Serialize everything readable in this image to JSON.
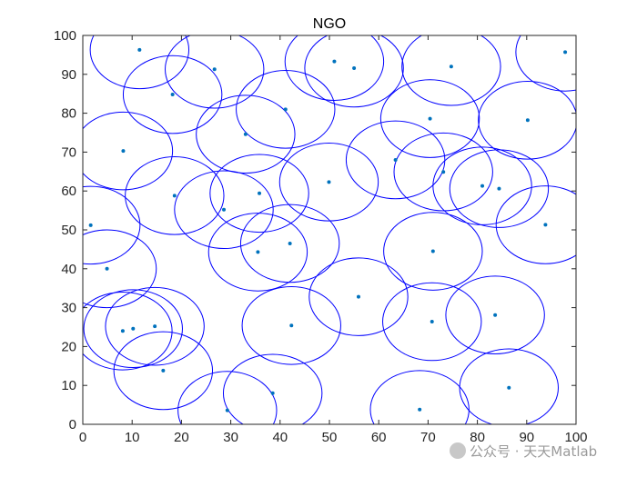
{
  "chart_data": {
    "type": "scatter",
    "title": "NGO",
    "xlim": [
      0,
      100
    ],
    "ylim": [
      0,
      100
    ],
    "xticks": [
      0,
      10,
      20,
      30,
      40,
      50,
      60,
      70,
      80,
      90,
      100
    ],
    "yticks": [
      0,
      10,
      20,
      30,
      40,
      50,
      60,
      70,
      80,
      90,
      100
    ],
    "grid": false,
    "coverage_radius": 10,
    "point_color": "#0072BD",
    "circle_color": "#0000FF",
    "points": [
      {
        "x": 11.5,
        "y": 96.3
      },
      {
        "x": 26.7,
        "y": 91.3
      },
      {
        "x": 18.2,
        "y": 84.8
      },
      {
        "x": 8.2,
        "y": 70.3
      },
      {
        "x": 33.0,
        "y": 74.6
      },
      {
        "x": 41.1,
        "y": 81.0
      },
      {
        "x": 51.0,
        "y": 93.3
      },
      {
        "x": 55.0,
        "y": 91.6
      },
      {
        "x": 74.7,
        "y": 92.0
      },
      {
        "x": 70.4,
        "y": 78.6
      },
      {
        "x": 90.2,
        "y": 78.2
      },
      {
        "x": 97.8,
        "y": 95.7
      },
      {
        "x": 18.6,
        "y": 58.8
      },
      {
        "x": 28.6,
        "y": 55.2
      },
      {
        "x": 35.8,
        "y": 59.4
      },
      {
        "x": 49.9,
        "y": 62.3
      },
      {
        "x": 63.4,
        "y": 68.0
      },
      {
        "x": 73.1,
        "y": 64.9
      },
      {
        "x": 81.0,
        "y": 61.3
      },
      {
        "x": 84.4,
        "y": 60.6
      },
      {
        "x": 93.8,
        "y": 51.3
      },
      {
        "x": 1.6,
        "y": 51.2
      },
      {
        "x": 42.0,
        "y": 46.5
      },
      {
        "x": 35.5,
        "y": 44.3
      },
      {
        "x": 71.0,
        "y": 44.5
      },
      {
        "x": 4.9,
        "y": 40.0
      },
      {
        "x": 55.9,
        "y": 32.8
      },
      {
        "x": 70.8,
        "y": 26.4
      },
      {
        "x": 83.6,
        "y": 28.1
      },
      {
        "x": 42.3,
        "y": 25.4
      },
      {
        "x": 8.1,
        "y": 24.0
      },
      {
        "x": 10.2,
        "y": 24.6
      },
      {
        "x": 14.6,
        "y": 25.2
      },
      {
        "x": 16.3,
        "y": 13.8
      },
      {
        "x": 38.5,
        "y": 8.0
      },
      {
        "x": 29.3,
        "y": 3.6
      },
      {
        "x": 68.3,
        "y": 3.8
      },
      {
        "x": 86.4,
        "y": 9.4
      }
    ]
  },
  "watermark": {
    "text": "公众号 · 天天Matlab"
  }
}
